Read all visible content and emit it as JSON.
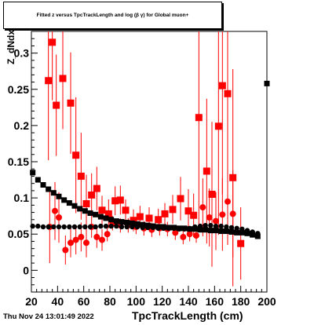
{
  "header": {
    "title": "Fitted  z   versus TpcTrackLength and log  (β γ) for Global muon+",
    "title_subscript_dedx": "dNdx",
    "title_subscript_log": "10"
  },
  "footer": {
    "timestamp": "Thu Nov 24 13:01:49 2022"
  },
  "chart_data": {
    "type": "scatter",
    "title": "Fitted z_dNdx versus TpcTrackLength and log10(βγ) for Global muon+",
    "xlabel": "TpcTrackLength (cm)",
    "ylabel": "Z_dNdx",
    "xlim": [
      20,
      200
    ],
    "ylim": [
      -0.03,
      0.33
    ],
    "x_ticks": [
      20,
      40,
      60,
      80,
      100,
      120,
      140,
      160,
      180,
      200
    ],
    "y_ticks": [
      0,
      0.05,
      0.1,
      0.15,
      0.2,
      0.25,
      0.3
    ],
    "y_tick_labels": [
      "0",
      "0.05",
      "0.1",
      "0.15",
      "0.2",
      "0.25",
      "0.3"
    ],
    "grid": true,
    "colors": {
      "red_series": "#ff0000",
      "black_series": "#000000"
    },
    "series": [
      {
        "color": "red",
        "marker": "square",
        "x": [
          33,
          36,
          39,
          44,
          50,
          54,
          58,
          62,
          66,
          70,
          74,
          79,
          84,
          88,
          92,
          98,
          103,
          110,
          117,
          122,
          128,
          134,
          140,
          144,
          148,
          154,
          158,
          163,
          166,
          170,
          174,
          180
        ],
        "y": [
          0.262,
          0.315,
          0.228,
          0.265,
          0.231,
          0.159,
          0.13,
          0.092,
          0.104,
          0.113,
          0.083,
          0.078,
          0.096,
          0.097,
          0.083,
          0.069,
          0.074,
          0.072,
          0.07,
          0.078,
          0.084,
          0.099,
          0.082,
          0.076,
          0.211,
          0.137,
          0.105,
          0.199,
          0.255,
          0.244,
          0.128,
          0.037
        ],
        "err": [
          0.11,
          0.08,
          0.07,
          0.07,
          0.07,
          0.08,
          0.06,
          0.04,
          0.03,
          0.03,
          0.02,
          0.02,
          0.02,
          0.02,
          0.015,
          0.015,
          0.015,
          0.015,
          0.015,
          0.015,
          0.02,
          0.03,
          0.03,
          0.03,
          0.15,
          0.1,
          0.1,
          0.15,
          0.15,
          0.15,
          0.15,
          0.05
        ]
      },
      {
        "color": "red",
        "marker": "circle",
        "x": [
          34,
          38,
          41,
          46,
          50,
          54,
          58,
          62,
          66,
          70,
          74,
          78,
          82,
          88,
          94,
          100,
          106,
          112,
          118,
          124,
          130,
          136,
          141,
          146,
          151,
          156,
          161,
          166,
          170,
          174
        ],
        "y": [
          0.06,
          0.082,
          0.073,
          0.028,
          0.038,
          0.042,
          0.046,
          0.038,
          0.06,
          0.046,
          0.042,
          0.05,
          0.065,
          0.062,
          0.062,
          0.06,
          0.058,
          0.056,
          0.058,
          0.057,
          0.052,
          0.046,
          0.05,
          0.048,
          0.087,
          0.073,
          0.068,
          0.077,
          0.095,
          0.078
        ],
        "err": [
          0.05,
          0.04,
          0.035,
          0.02,
          0.02,
          0.02,
          0.02,
          0.02,
          0.015,
          0.015,
          0.015,
          0.01,
          0.01,
          0.01,
          0.01,
          0.01,
          0.01,
          0.01,
          0.01,
          0.01,
          0.01,
          0.01,
          0.01,
          0.01,
          0.04,
          0.04,
          0.04,
          0.05,
          0.06,
          0.06
        ]
      },
      {
        "color": "black",
        "marker": "square",
        "x": [
          21,
          25,
          29,
          33,
          37,
          41,
          45,
          49,
          53,
          57,
          61,
          65,
          69,
          73,
          77,
          81,
          85,
          89,
          93,
          97,
          101,
          105,
          109,
          113,
          117,
          121,
          125,
          129,
          133,
          137,
          141,
          145,
          149,
          153,
          157,
          161,
          165,
          169,
          173,
          177,
          181,
          185,
          189,
          193,
          200
        ],
        "y": [
          0.135,
          0.125,
          0.118,
          0.112,
          0.107,
          0.102,
          0.097,
          0.093,
          0.089,
          0.085,
          0.082,
          0.079,
          0.077,
          0.074,
          0.072,
          0.07,
          0.068,
          0.067,
          0.066,
          0.065,
          0.064,
          0.063,
          0.062,
          0.061,
          0.06,
          0.06,
          0.059,
          0.059,
          0.058,
          0.058,
          0.057,
          0.057,
          0.056,
          0.056,
          0.055,
          0.055,
          0.054,
          0.054,
          0.053,
          0.052,
          0.052,
          0.051,
          0.049,
          0.047,
          0.258
        ]
      },
      {
        "color": "black",
        "marker": "circle",
        "x": [
          21,
          25,
          29,
          33,
          37,
          41,
          45,
          49,
          53,
          57,
          61,
          65,
          69,
          73,
          77,
          81,
          85,
          89,
          93,
          97,
          101,
          105,
          109,
          113,
          117,
          121,
          125,
          129,
          133,
          137,
          141,
          145,
          149,
          153,
          157,
          161,
          165,
          169,
          173,
          177,
          181,
          185,
          189,
          193
        ],
        "y": [
          0.061,
          0.061,
          0.06,
          0.06,
          0.06,
          0.06,
          0.06,
          0.06,
          0.06,
          0.06,
          0.06,
          0.06,
          0.06,
          0.061,
          0.061,
          0.061,
          0.061,
          0.06,
          0.06,
          0.06,
          0.06,
          0.059,
          0.059,
          0.059,
          0.058,
          0.058,
          0.058,
          0.058,
          0.057,
          0.057,
          0.058,
          0.06,
          0.061,
          0.062,
          0.062,
          0.061,
          0.061,
          0.06,
          0.059,
          0.058,
          0.057,
          0.055,
          0.053,
          0.051
        ]
      }
    ]
  }
}
